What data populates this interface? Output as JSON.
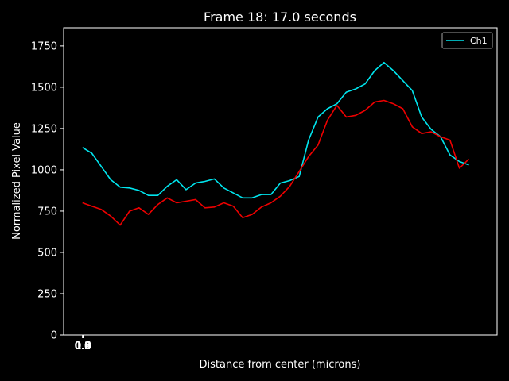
{
  "chart_data": {
    "type": "line",
    "title": "Frame 18: 17.0 seconds",
    "xlabel": "Distance from center (microns)",
    "ylabel": "Normalized Pixel Value",
    "ylim": [
      0,
      1860
    ],
    "yticks": [
      0,
      250,
      500,
      750,
      1000,
      1250,
      1500,
      1750
    ],
    "xlim": [
      -1,
      22
    ],
    "xtick_labels": [
      "0.0",
      "0.2",
      "0.4",
      "0.6",
      "0.8",
      "1.0"
    ],
    "grid": false,
    "legend_position": "top-right",
    "background": "#000000",
    "foreground": "#ffffff",
    "series": [
      {
        "name": "Ch1",
        "color": "#00e5ee",
        "x": [
          0,
          0.5,
          1,
          1.5,
          2,
          2.5,
          3,
          3.5,
          4,
          4.5,
          5,
          5.5,
          6,
          6.5,
          7,
          7.5,
          8,
          8.5,
          9,
          9.5,
          10,
          10.5,
          11,
          11.5,
          12,
          12.5,
          13,
          13.5,
          14,
          14.5,
          15,
          15.5,
          16,
          16.5,
          17,
          17.5,
          18,
          18.5,
          19,
          19.5,
          20,
          20.5
        ],
        "values": [
          1135,
          1100,
          1020,
          940,
          895,
          890,
          875,
          845,
          845,
          900,
          940,
          880,
          920,
          930,
          945,
          890,
          860,
          830,
          830,
          850,
          850,
          920,
          935,
          960,
          1180,
          1320,
          1370,
          1400,
          1470,
          1490,
          1520,
          1600,
          1650,
          1600,
          1540,
          1480,
          1320,
          1245,
          1200,
          1090,
          1050,
          1030
        ]
      },
      {
        "name": "",
        "color": "#ee0000",
        "x": [
          0,
          0.5,
          1,
          1.5,
          2,
          2.5,
          3,
          3.5,
          4,
          4.5,
          5,
          5.5,
          6,
          6.5,
          7,
          7.5,
          8,
          8.5,
          9,
          9.5,
          10,
          10.5,
          11,
          11.5,
          12,
          12.5,
          13,
          13.5,
          14,
          14.5,
          15,
          15.5,
          16,
          16.5,
          17,
          17.5,
          18,
          18.5,
          19,
          19.5,
          20,
          20.5
        ],
        "values": [
          800,
          780,
          760,
          720,
          665,
          750,
          770,
          730,
          790,
          830,
          800,
          810,
          820,
          770,
          775,
          800,
          780,
          710,
          730,
          775,
          800,
          840,
          900,
          990,
          1080,
          1150,
          1300,
          1390,
          1320,
          1330,
          1360,
          1410,
          1420,
          1400,
          1370,
          1260,
          1220,
          1230,
          1200,
          1180,
          1010,
          1065
        ]
      }
    ]
  }
}
